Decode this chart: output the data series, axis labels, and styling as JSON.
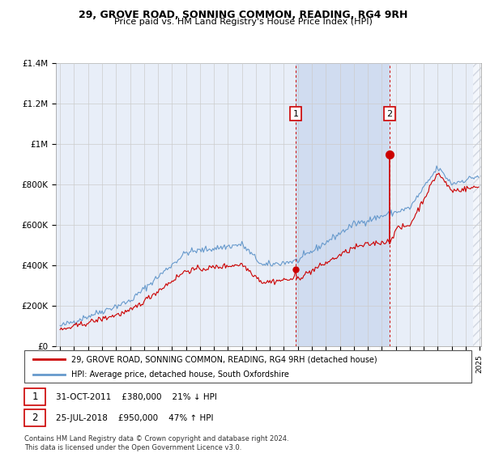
{
  "title": "29, GROVE ROAD, SONNING COMMON, READING, RG4 9RH",
  "subtitle": "Price paid vs. HM Land Registry's House Price Index (HPI)",
  "ylabel_ticks": [
    "£0",
    "£200K",
    "£400K",
    "£600K",
    "£800K",
    "£1M",
    "£1.2M",
    "£1.4M"
  ],
  "ylim": [
    0,
    1400000
  ],
  "background_color": "#ffffff",
  "plot_bg_color": "#e8eef8",
  "grid_color": "#cccccc",
  "hpi_color": "#6699cc",
  "price_color": "#cc0000",
  "vline_color": "#cc0000",
  "annotation_box_color": "#cc0000",
  "shade_color": "#d0dcf0",
  "hatch_color": "#b0b8c8",
  "transaction1_year": 2011.83,
  "transaction1_price": 380000,
  "transaction2_year": 2018.56,
  "transaction2_price": 950000,
  "transaction1_note": "31-OCT-2011    £380,000    21% ↓ HPI",
  "transaction2_note": "25-JUL-2018    £950,000    47% ↑ HPI",
  "legend_line1": "29, GROVE ROAD, SONNING COMMON, READING, RG4 9RH (detached house)",
  "legend_line2": "HPI: Average price, detached house, South Oxfordshire",
  "footnote": "Contains HM Land Registry data © Crown copyright and database right 2024.\nThis data is licensed under the Open Government Licence v3.0."
}
